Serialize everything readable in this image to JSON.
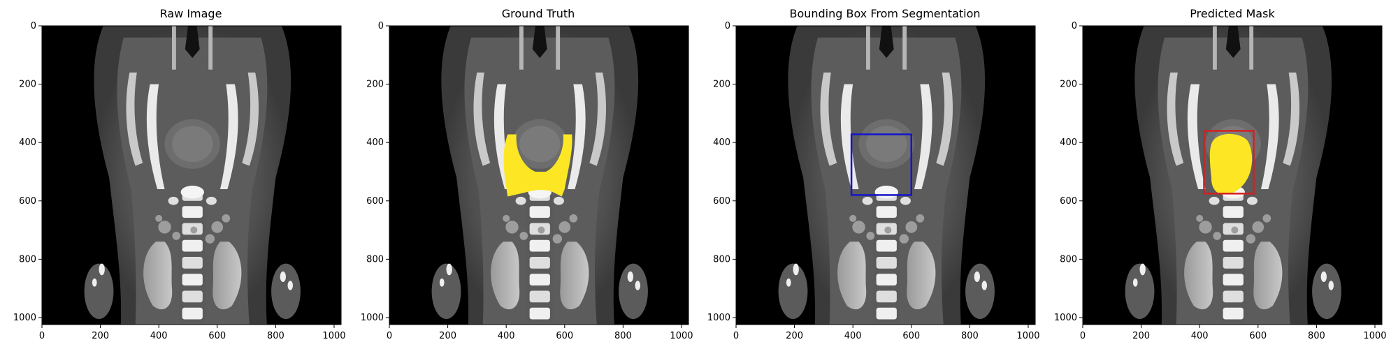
{
  "figure": {
    "panels": [
      {
        "title": "Raw Image",
        "overlay": "none"
      },
      {
        "title": "Ground Truth",
        "overlay": "mask"
      },
      {
        "title": "Bounding Box From Segmentation",
        "overlay": "box"
      },
      {
        "title": "Predicted Mask",
        "overlay": "mask+box"
      }
    ],
    "axis": {
      "x_ticks": [
        "0",
        "200",
        "400",
        "600",
        "800",
        "1000"
      ],
      "y_ticks": [
        "0",
        "200",
        "400",
        "600",
        "800",
        "1000"
      ],
      "xlim": [
        0,
        1024
      ],
      "ylim": [
        1024,
        0
      ]
    },
    "ground_truth_box": {
      "x0": 395,
      "y0": 372,
      "x1": 600,
      "y1": 580,
      "color": "#1414cc"
    },
    "predicted_box": {
      "x0": 415,
      "y0": 360,
      "x1": 585,
      "y1": 575,
      "color": "#d42020"
    },
    "mask_color": "#fde725"
  }
}
